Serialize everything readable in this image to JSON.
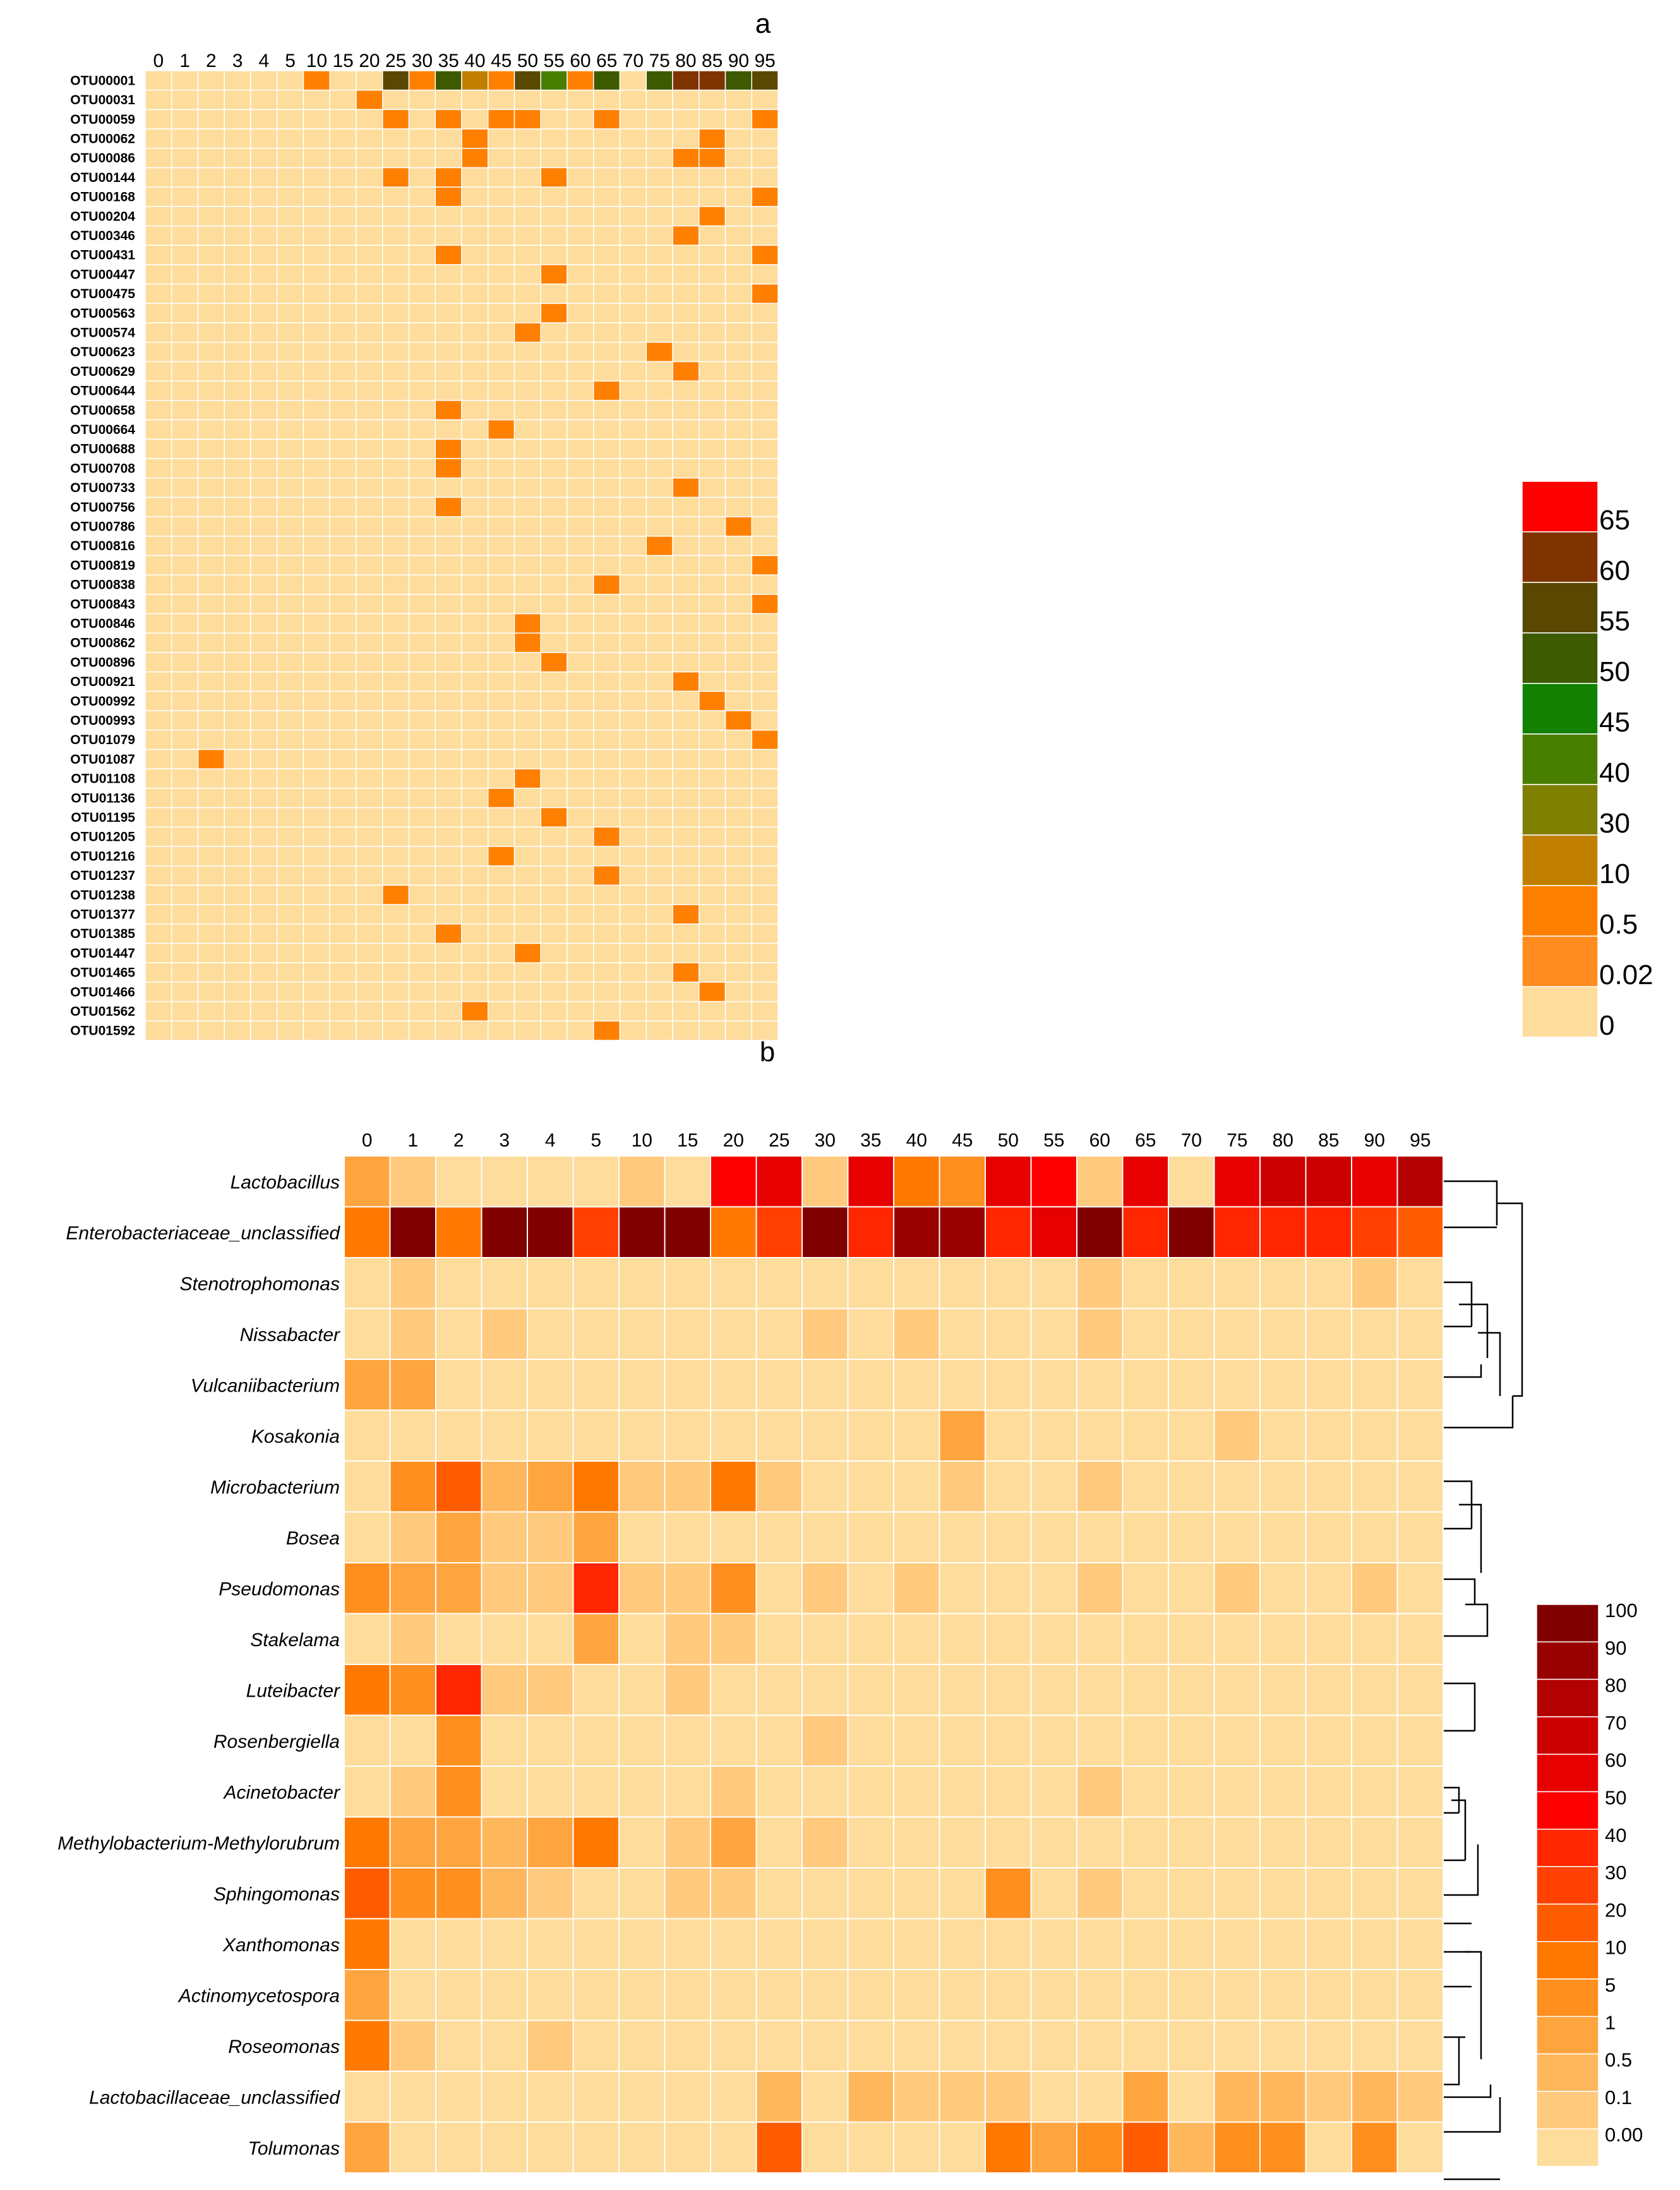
{
  "chart_data": [
    {
      "type": "heatmap",
      "title": "a",
      "columns": [
        "0",
        "1",
        "2",
        "3",
        "4",
        "5",
        "10",
        "15",
        "20",
        "25",
        "30",
        "35",
        "40",
        "45",
        "50",
        "55",
        "60",
        "65",
        "70",
        "75",
        "80",
        "85",
        "90",
        "95"
      ],
      "rows": [
        "OTU00001",
        "OTU00031",
        "OTU00059",
        "OTU00062",
        "OTU00086",
        "OTU00144",
        "OTU00168",
        "OTU00204",
        "OTU00346",
        "OTU00431",
        "OTU00447",
        "OTU00475",
        "OTU00563",
        "OTU00574",
        "OTU00623",
        "OTU00629",
        "OTU00644",
        "OTU00658",
        "OTU00664",
        "OTU00688",
        "OTU00708",
        "OTU00733",
        "OTU00756",
        "OTU00786",
        "OTU00816",
        "OTU00819",
        "OTU00838",
        "OTU00843",
        "OTU00846",
        "OTU00862",
        "OTU00896",
        "OTU00921",
        "OTU00992",
        "OTU00993",
        "OTU01079",
        "OTU01087",
        "OTU01108",
        "OTU01136",
        "OTU01195",
        "OTU01205",
        "OTU01216",
        "OTU01237",
        "OTU01238",
        "OTU01377",
        "OTU01385",
        "OTU01447",
        "OTU01465",
        "OTU01466",
        "OTU01562",
        "OTU01592"
      ],
      "cells": [
        [
          0,
          6,
          0.5
        ],
        [
          0,
          9,
          55
        ],
        [
          0,
          10,
          0.5
        ],
        [
          0,
          11,
          50
        ],
        [
          0,
          12,
          10
        ],
        [
          0,
          13,
          0.5
        ],
        [
          0,
          14,
          55
        ],
        [
          0,
          15,
          40
        ],
        [
          0,
          16,
          0.5
        ],
        [
          0,
          17,
          50
        ],
        [
          0,
          19,
          50
        ],
        [
          0,
          20,
          60
        ],
        [
          0,
          21,
          60
        ],
        [
          0,
          22,
          50
        ],
        [
          0,
          23,
          55
        ],
        [
          1,
          8,
          0.5
        ],
        [
          2,
          9,
          0.5
        ],
        [
          2,
          11,
          0.5
        ],
        [
          2,
          13,
          0.5
        ],
        [
          2,
          14,
          0.5
        ],
        [
          2,
          17,
          0.5
        ],
        [
          2,
          23,
          0.5
        ],
        [
          3,
          12,
          0.5
        ],
        [
          3,
          21,
          0.5
        ],
        [
          4,
          12,
          0.5
        ],
        [
          4,
          20,
          0.5
        ],
        [
          4,
          21,
          0.5
        ],
        [
          5,
          9,
          0.5
        ],
        [
          5,
          11,
          0.5
        ],
        [
          5,
          15,
          0.5
        ],
        [
          6,
          11,
          0.5
        ],
        [
          6,
          23,
          0.5
        ],
        [
          7,
          21,
          0.5
        ],
        [
          8,
          20,
          0.5
        ],
        [
          9,
          11,
          0.5
        ],
        [
          9,
          23,
          0.5
        ],
        [
          10,
          15,
          0.5
        ],
        [
          11,
          23,
          0.5
        ],
        [
          12,
          15,
          0.5
        ],
        [
          13,
          14,
          0.5
        ],
        [
          14,
          19,
          0.5
        ],
        [
          15,
          20,
          0.5
        ],
        [
          16,
          17,
          0.5
        ],
        [
          17,
          11,
          0.5
        ],
        [
          18,
          13,
          0.5
        ],
        [
          19,
          11,
          0.5
        ],
        [
          20,
          11,
          0.5
        ],
        [
          21,
          20,
          0.5
        ],
        [
          22,
          11,
          0.5
        ],
        [
          23,
          22,
          0.5
        ],
        [
          24,
          19,
          0.5
        ],
        [
          25,
          23,
          0.5
        ],
        [
          26,
          17,
          0.5
        ],
        [
          27,
          23,
          0.5
        ],
        [
          28,
          14,
          0.5
        ],
        [
          29,
          14,
          0.5
        ],
        [
          30,
          15,
          0.5
        ],
        [
          31,
          20,
          0.5
        ],
        [
          32,
          21,
          0.5
        ],
        [
          33,
          22,
          0.5
        ],
        [
          34,
          23,
          0.5
        ],
        [
          35,
          2,
          0.5
        ],
        [
          36,
          14,
          0.5
        ],
        [
          37,
          13,
          0.5
        ],
        [
          38,
          15,
          0.5
        ],
        [
          39,
          17,
          0.5
        ],
        [
          40,
          13,
          0.5
        ],
        [
          41,
          17,
          0.5
        ],
        [
          42,
          9,
          0.5
        ],
        [
          43,
          20,
          0.5
        ],
        [
          44,
          11,
          0.5
        ],
        [
          45,
          14,
          0.5
        ],
        [
          46,
          20,
          0.5
        ],
        [
          47,
          21,
          0.5
        ],
        [
          48,
          12,
          0.5
        ],
        [
          49,
          17,
          0.5
        ]
      ],
      "legend_labels": [
        "65",
        "60",
        "55",
        "50",
        "45",
        "40",
        "30",
        "10",
        "0.5",
        "0.02",
        "0"
      ],
      "legend_colors": [
        "#fe0000",
        "#7f3400",
        "#5a4800",
        "#3d5a00",
        "#138000",
        "#487f00",
        "#7f7f00",
        "#c17f00",
        "#ff8000",
        "#ff8c1e",
        "#fddc9c"
      ],
      "base_color": "#fddc9c"
    },
    {
      "type": "heatmap",
      "title": "b",
      "columns": [
        "0",
        "1",
        "2",
        "3",
        "4",
        "5",
        "10",
        "15",
        "20",
        "25",
        "30",
        "35",
        "40",
        "45",
        "50",
        "55",
        "60",
        "65",
        "70",
        "75",
        "80",
        "85",
        "90",
        "95"
      ],
      "rows": [
        "Lactobacillus",
        "Enterobacteriaceae_unclassified",
        "Stenotrophomonas",
        "Nissabacter",
        "Vulcaniibacterium",
        "Kosakonia",
        "Microbacterium",
        "Bosea",
        "Pseudomonas",
        "Stakelama",
        "Luteibacter",
        "Rosenbergiella",
        "Acinetobacter",
        "Methylobacterium-Methylorubrum",
        "Sphingomonas",
        "Xanthomonas",
        "Actinomycetospora",
        "Roseomonas",
        "Lactobacillaceae_unclassified",
        "Tolumonas"
      ],
      "values": [
        [
          2,
          0.2,
          0,
          0,
          0,
          0,
          0.3,
          0,
          50,
          60,
          0.2,
          60,
          10,
          5,
          60,
          50,
          0.2,
          60,
          0,
          60,
          70,
          70,
          60,
          80
        ],
        [
          10,
          100,
          10,
          100,
          100,
          30,
          100,
          100,
          10,
          30,
          100,
          40,
          90,
          90,
          40,
          60,
          100,
          40,
          100,
          40,
          40,
          40,
          30,
          20
        ],
        [
          0,
          0.1,
          0,
          0,
          0,
          0,
          0,
          0,
          0,
          0,
          0,
          0,
          0,
          0,
          0,
          0,
          0.1,
          0,
          0,
          0,
          0,
          0,
          0.1,
          0
        ],
        [
          0,
          0.1,
          0,
          0.1,
          0,
          0,
          0,
          0,
          0,
          0,
          0.1,
          0,
          0.1,
          0,
          0,
          0,
          0.1,
          0,
          0,
          0,
          0,
          0,
          0,
          0
        ],
        [
          1,
          1,
          0,
          0,
          0,
          0,
          0,
          0,
          0,
          0,
          0,
          0,
          0,
          0,
          0,
          0,
          0,
          0,
          0,
          0,
          0,
          0,
          0,
          0
        ],
        [
          0,
          0,
          0,
          0,
          0,
          0,
          0,
          0,
          0,
          0,
          0,
          0,
          0,
          1,
          0,
          0,
          0,
          0,
          0,
          0.1,
          0,
          0,
          0,
          0
        ],
        [
          0,
          5,
          20,
          0.5,
          1,
          10,
          0.1,
          0.1,
          10,
          0.1,
          0,
          0,
          0,
          0.1,
          0,
          0,
          0.1,
          0,
          0,
          0,
          0,
          0,
          0,
          0
        ],
        [
          0,
          0.1,
          1,
          0.1,
          0.1,
          1,
          0,
          0,
          0,
          0,
          0,
          0,
          0,
          0,
          0,
          0,
          0,
          0,
          0,
          0,
          0,
          0,
          0,
          0
        ],
        [
          5,
          1,
          1,
          0.1,
          0.1,
          40,
          0.1,
          0.1,
          5,
          0,
          0.1,
          0,
          0.1,
          0,
          0,
          0,
          0.1,
          0,
          0,
          0.1,
          0,
          0,
          0.1,
          0
        ],
        [
          0,
          0.1,
          0,
          0,
          0,
          1,
          0,
          0.1,
          0.1,
          0,
          0,
          0,
          0,
          0,
          0,
          0,
          0,
          0,
          0,
          0,
          0,
          0,
          0,
          0
        ],
        [
          10,
          5,
          40,
          0.1,
          0.1,
          0,
          0,
          0.1,
          0,
          0,
          0,
          0,
          0,
          0,
          0,
          0,
          0,
          0,
          0,
          0,
          0,
          0,
          0,
          0
        ],
        [
          0,
          0,
          5,
          0,
          0,
          0,
          0,
          0,
          0,
          0,
          0.1,
          0,
          0,
          0,
          0,
          0,
          0,
          0,
          0,
          0,
          0,
          0,
          0,
          0
        ],
        [
          0,
          0.1,
          5,
          0,
          0,
          0,
          0,
          0,
          0.1,
          0,
          0,
          0,
          0,
          0,
          0,
          0,
          0.1,
          0,
          0,
          0,
          0,
          0,
          0,
          0
        ],
        [
          10,
          1,
          1,
          0.5,
          1,
          10,
          0,
          0.1,
          1,
          0,
          0.1,
          0,
          0,
          0,
          0,
          0,
          0,
          0,
          0,
          0,
          0,
          0,
          0,
          0
        ],
        [
          20,
          5,
          5,
          0.5,
          0.1,
          0,
          0,
          0.1,
          0.1,
          0,
          0,
          0,
          0,
          0,
          5,
          0,
          0.1,
          0,
          0,
          0,
          0,
          0,
          0,
          0
        ],
        [
          10,
          0,
          0,
          0,
          0,
          0,
          0,
          0,
          0,
          0,
          0,
          0,
          0,
          0,
          0,
          0,
          0,
          0,
          0,
          0,
          0,
          0,
          0,
          0
        ],
        [
          1,
          0,
          0,
          0,
          0,
          0,
          0,
          0,
          0,
          0,
          0,
          0,
          0,
          0,
          0,
          0,
          0,
          0,
          0,
          0,
          0,
          0,
          0,
          0
        ],
        [
          10,
          0.1,
          0,
          0,
          0.1,
          0,
          0,
          0,
          0,
          0,
          0,
          0,
          0,
          0,
          0,
          0,
          0,
          0,
          0,
          0,
          0,
          0,
          0,
          0
        ],
        [
          0,
          0,
          0,
          0,
          0,
          0,
          0,
          0,
          0,
          0.5,
          0,
          0.5,
          0.1,
          0.1,
          0.1,
          0,
          0,
          1,
          0,
          0.5,
          0.5,
          0.1,
          0.5,
          0.1
        ],
        [
          1,
          0,
          0,
          0,
          0,
          0,
          0,
          0,
          0,
          20,
          0,
          0,
          0,
          0,
          10,
          1,
          5,
          20,
          0.5,
          5,
          5,
          0,
          5,
          0
        ]
      ],
      "legend_labels": [
        "100",
        "90",
        "80",
        "70",
        "60",
        "50",
        "40",
        "30",
        "20",
        "10",
        "5",
        "1",
        "0.5",
        "0.1",
        "0.00"
      ],
      "legend_colors": [
        "#800000",
        "#990000",
        "#b30000",
        "#cc0000",
        "#e60000",
        "#ff0000",
        "#ff2600",
        "#ff4000",
        "#ff5c00",
        "#ff7800",
        "#ff8f1e",
        "#ffa540",
        "#ffb75e",
        "#ffc97e",
        "#fddc9c"
      ],
      "dendrogram": "hierarchical clustering of genera (right side)"
    }
  ]
}
